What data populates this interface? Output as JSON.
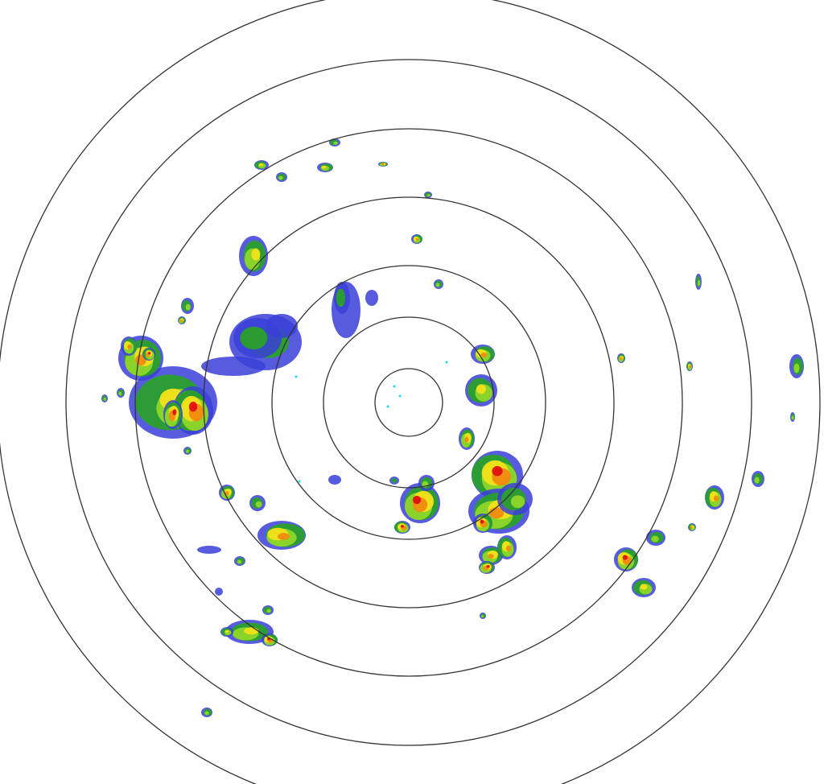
{
  "radar": {
    "range_rings": 7,
    "ring_color": "#333333",
    "background": "#ffffff",
    "reflectivity_palette": {
      "weak": "#3a3fd8",
      "light": "#2aa02a",
      "moderate": "#8fd62a",
      "heavy": "#f2e21a",
      "intense": "#f08a10",
      "extreme": "#e01010",
      "clear_air": "#20d8f0"
    }
  }
}
